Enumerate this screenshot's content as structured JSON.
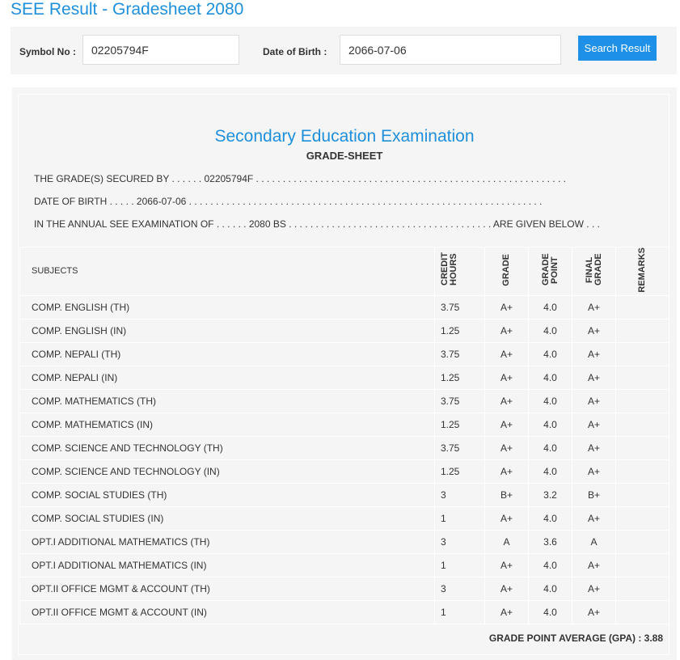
{
  "title": "SEE Result - Gradesheet 2080",
  "form": {
    "symbol_label": "Symbol No :",
    "symbol_value": "02205794F",
    "dob_label": "Date of Birth :",
    "dob_value": "2066-07-06",
    "search_label": "Search Result"
  },
  "sheet": {
    "heading": "Secondary Education Examination",
    "subheading": "GRADE-SHEET",
    "line1": "THE GRADE(S) SECURED BY . . . . . . 02205794F . . . . . . . . . . . . . . . . . . . . . . . . . . . . . . . . . . . . . . . . . . . . . . . . . . . . . . . . . .",
    "line2": "DATE OF BIRTH . . . . . 2066-07-06 . . . . . . . . . . . . . . . . . . . . . . . . . . . . . . . . . . . . . . . . . . . . . . . . . . . . . . . . . . . . . . . . . .",
    "line3": "IN THE ANNUAL SEE EXAMINATION OF . . . . . . 2080 BS . . . . . . . . . . . . . . . . . . . . . . . . . . . . . . . . . . . . . . ARE GIVEN BELOW . . .",
    "headers": {
      "subjects": "SUBJECTS",
      "credit_hours": "CREDIT HOURS",
      "grade": "GRADE",
      "grade_point": "GRADE POINT",
      "final_grade": "FINAL GRADE",
      "remarks": "REMARKS"
    },
    "rows": [
      [
        "COMP. ENGLISH (TH)",
        "3.75",
        "A+",
        "4.0",
        "A+"
      ],
      [
        "COMP. ENGLISH (IN)",
        "1.25",
        "A+",
        "4.0",
        "A+"
      ],
      [
        "COMP. NEPALI (TH)",
        "3.75",
        "A+",
        "4.0",
        "A+"
      ],
      [
        "COMP. NEPALI (IN)",
        "1.25",
        "A+",
        "4.0",
        "A+"
      ],
      [
        "COMP. MATHEMATICS (TH)",
        "3.75",
        "A+",
        "4.0",
        "A+"
      ],
      [
        "COMP. MATHEMATICS (IN)",
        "1.25",
        "A+",
        "4.0",
        "A+"
      ],
      [
        "COMP. SCIENCE AND TECHNOLOGY (TH)",
        "3.75",
        "A+",
        "4.0",
        "A+"
      ],
      [
        "COMP. SCIENCE AND TECHNOLOGY (IN)",
        "1.25",
        "A+",
        "4.0",
        "A+"
      ],
      [
        "COMP. SOCIAL STUDIES (TH)",
        "3",
        "B+",
        "3.2",
        "B+"
      ],
      [
        "COMP. SOCIAL STUDIES (IN)",
        "1",
        "A+",
        "4.0",
        "A+"
      ],
      [
        "OPT.I ADDITIONAL MATHEMATICS (TH)",
        "3",
        "A",
        "3.6",
        "A"
      ],
      [
        "OPT.I ADDITIONAL MATHEMATICS (IN)",
        "1",
        "A+",
        "4.0",
        "A+"
      ],
      [
        "OPT.II OFFICE MGMT & ACCOUNT (TH)",
        "3",
        "A+",
        "4.0",
        "A+"
      ],
      [
        "OPT.II OFFICE MGMT & ACCOUNT (IN)",
        "1",
        "A+",
        "4.0",
        "A+"
      ]
    ],
    "gpa": "GRADE POINT AVERAGE (GPA) : 3.88"
  }
}
